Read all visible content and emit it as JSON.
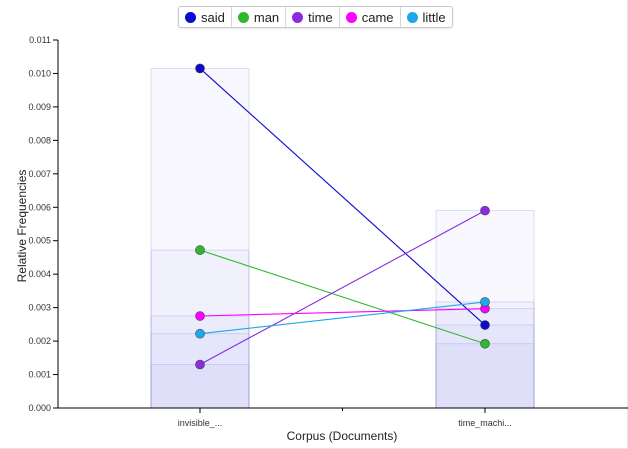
{
  "chart_data": {
    "type": "line",
    "title": "",
    "xlabel": "Corpus (Documents)",
    "ylabel": "Relative Frequencies",
    "categories": [
      "invisible_...",
      "time_machi..."
    ],
    "ylim": [
      0,
      0.011
    ],
    "yticks": [
      "0.000",
      "0.001",
      "0.002",
      "0.003",
      "0.004",
      "0.005",
      "0.006",
      "0.007",
      "0.008",
      "0.009",
      "0.010",
      "0.011"
    ],
    "legend_position": "top-center",
    "grid": false,
    "series": [
      {
        "name": "said",
        "color": "#0a0ad0",
        "values": [
          0.01015,
          0.00248
        ]
      },
      {
        "name": "man",
        "color": "#2eb82e",
        "values": [
          0.00472,
          0.00192
        ]
      },
      {
        "name": "time",
        "color": "#8a2be2",
        "values": [
          0.0013,
          0.0059
        ]
      },
      {
        "name": "came",
        "color": "#ff00ff",
        "values": [
          0.00275,
          0.00297
        ]
      },
      {
        "name": "little",
        "color": "#1ea7ea",
        "values": [
          0.00222,
          0.00317
        ]
      }
    ]
  }
}
